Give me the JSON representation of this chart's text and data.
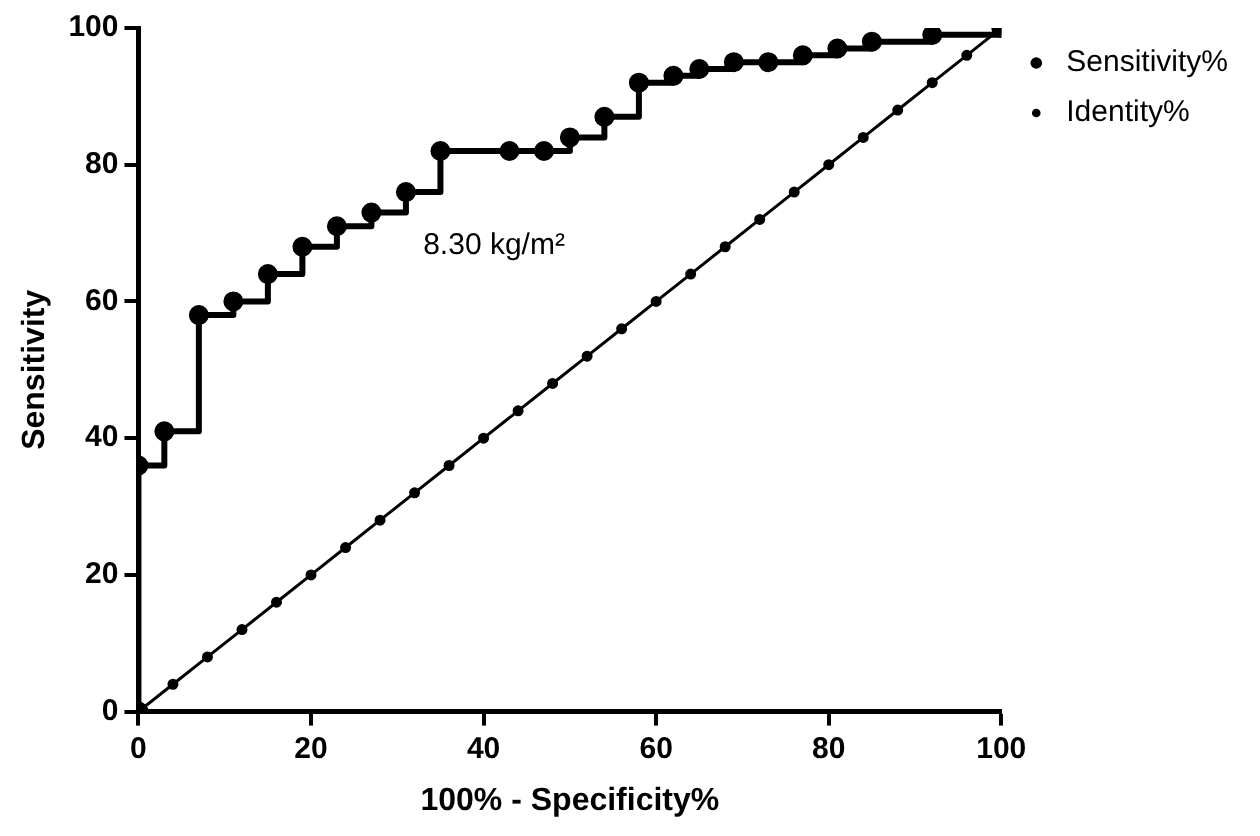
{
  "chart_data": {
    "type": "step",
    "xlabel": "100% - Specificity%",
    "ylabel": "Sensitivity",
    "xlim": [
      0,
      100
    ],
    "ylim": [
      0,
      100
    ],
    "xticks": [
      0,
      20,
      40,
      60,
      80,
      100
    ],
    "yticks": [
      0,
      20,
      40,
      60,
      80,
      100
    ],
    "grid": false,
    "legend": "top right",
    "marker": "circle",
    "line_style": "solid",
    "annotations": [
      "8.30 kg/m²"
    ],
    "series": [
      {
        "name": "Sensitivity%",
        "color": "#000000",
        "x": [
          0,
          0,
          3,
          7,
          11,
          15,
          19,
          23,
          27,
          31,
          35,
          43,
          47,
          50,
          54,
          58,
          62,
          65,
          69,
          73,
          77,
          81,
          85,
          92,
          100
        ],
        "values": [
          0,
          36,
          41,
          58,
          60,
          64,
          68,
          71,
          73,
          76,
          82,
          82,
          82,
          84,
          87,
          92,
          93,
          94,
          95,
          95,
          96,
          97,
          98,
          99,
          100
        ]
      },
      {
        "name": "Identity%",
        "color": "#000000",
        "type": "line",
        "x": [
          0,
          4,
          8,
          12,
          16,
          20,
          24,
          28,
          32,
          36,
          40,
          44,
          48,
          52,
          56,
          60,
          64,
          68,
          72,
          76,
          80,
          84,
          88,
          92,
          96,
          100
        ],
        "values": [
          0,
          4,
          8,
          12,
          16,
          20,
          24,
          28,
          32,
          36,
          40,
          44,
          48,
          52,
          56,
          60,
          64,
          68,
          72,
          76,
          80,
          84,
          88,
          92,
          96,
          100
        ]
      }
    ]
  }
}
